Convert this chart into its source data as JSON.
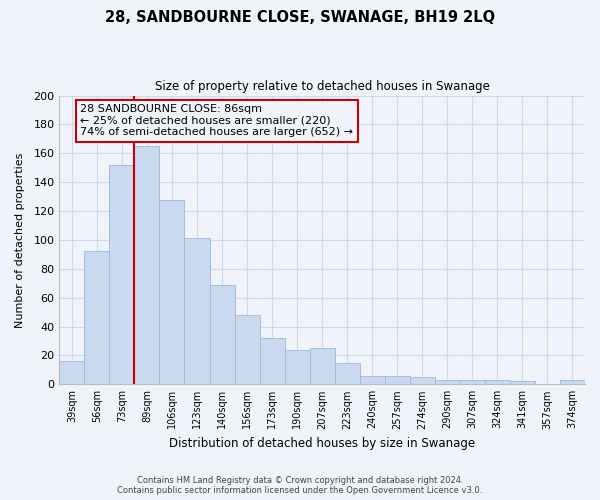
{
  "title": "28, SANDBOURNE CLOSE, SWANAGE, BH19 2LQ",
  "subtitle": "Size of property relative to detached houses in Swanage",
  "xlabel": "Distribution of detached houses by size in Swanage",
  "ylabel": "Number of detached properties",
  "bar_labels": [
    "39sqm",
    "56sqm",
    "73sqm",
    "89sqm",
    "106sqm",
    "123sqm",
    "140sqm",
    "156sqm",
    "173sqm",
    "190sqm",
    "207sqm",
    "223sqm",
    "240sqm",
    "257sqm",
    "274sqm",
    "290sqm",
    "307sqm",
    "324sqm",
    "341sqm",
    "357sqm",
    "374sqm"
  ],
  "bar_values": [
    16,
    92,
    152,
    165,
    128,
    101,
    69,
    48,
    32,
    24,
    25,
    15,
    6,
    6,
    5,
    3,
    3,
    3,
    2,
    0,
    3
  ],
  "bar_color": "#c8d9f0",
  "bar_edge_color": "#9db8d8",
  "vline_x_index": 3,
  "vline_color": "#cc0000",
  "ylim": [
    0,
    200
  ],
  "yticks": [
    0,
    20,
    40,
    60,
    80,
    100,
    120,
    140,
    160,
    180,
    200
  ],
  "annotation_title": "28 SANDBOURNE CLOSE: 86sqm",
  "annotation_line1": "← 25% of detached houses are smaller (220)",
  "annotation_line2": "74% of semi-detached houses are larger (652) →",
  "annotation_box_edge": "#cc0000",
  "footer_line1": "Contains HM Land Registry data © Crown copyright and database right 2024.",
  "footer_line2": "Contains public sector information licensed under the Open Government Licence v3.0.",
  "bg_color": "#f0f4fa",
  "grid_color": "#cdd8e8"
}
